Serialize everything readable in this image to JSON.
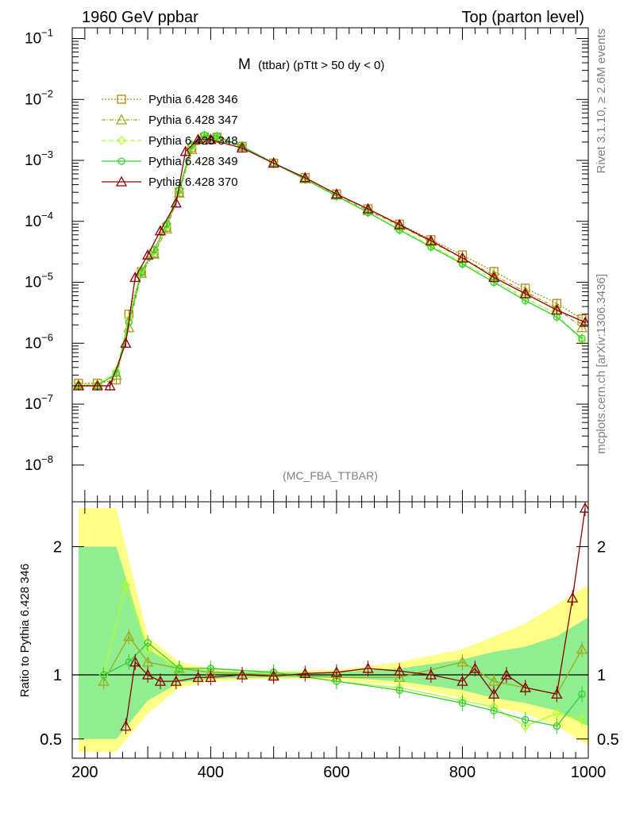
{
  "header": {
    "left": "1960 GeV ppbar",
    "right": "Top (parton level)"
  },
  "side": {
    "rivet": "Rivet 3.1.10, ≥ 2.6M events",
    "mcplots": "mcplots.cern.ch [arXiv:1306.3436]"
  },
  "chart_data": [
    {
      "type": "line",
      "panel": "main",
      "title_main": "M",
      "title_sub": "(ttbar) (pTtt > 50 dy < 0)",
      "analysis": "(MC_FBA_TTBAR)",
      "xlim": [
        180,
        1000
      ],
      "ylim": [
        2.5e-09,
        0.15
      ],
      "yscale": "log",
      "y_ticks": [
        {
          "v": 1e-08,
          "base": "10",
          "exp": "−8"
        },
        {
          "v": 1e-07,
          "base": "10",
          "exp": "−7"
        },
        {
          "v": 1e-06,
          "base": "10",
          "exp": "−6"
        },
        {
          "v": 1e-05,
          "base": "10",
          "exp": "−5"
        },
        {
          "v": 0.0001,
          "base": "10",
          "exp": "−4"
        },
        {
          "v": 0.001,
          "base": "10",
          "exp": "−3"
        },
        {
          "v": 0.01,
          "base": "10",
          "exp": "−2"
        },
        {
          "v": 0.1,
          "base": "10",
          "exp": "−1"
        }
      ],
      "legend_position": "top-left",
      "series": [
        {
          "name": "Pythia 6.428 346",
          "color": "#b8860b",
          "marker": "square",
          "dash": "2,2",
          "x": [
            190,
            220,
            250,
            270,
            290,
            310,
            330,
            350,
            370,
            390,
            410,
            450,
            500,
            550,
            600,
            650,
            700,
            750,
            800,
            850,
            900,
            950,
            990
          ],
          "y": [
            2.2e-07,
            2.2e-07,
            2.5e-07,
            3e-06,
            1.5e-05,
            3e-05,
            8e-05,
            0.0003,
            0.0016,
            0.0024,
            0.0024,
            0.0017,
            0.0009,
            0.00052,
            0.00028,
            0.00016,
            9e-05,
            5e-05,
            2.8e-05,
            1.5e-05,
            8e-06,
            4.5e-06,
            2.5e-06
          ]
        },
        {
          "name": "Pythia 6.428 347",
          "color": "#9aab1a",
          "marker": "triangle",
          "dash": "5,2,1,2",
          "x": [
            190,
            220,
            250,
            270,
            290,
            310,
            330,
            350,
            370,
            390,
            410,
            450,
            500,
            550,
            600,
            650,
            700,
            750,
            800,
            850,
            900,
            950,
            990
          ],
          "y": [
            2.1e-07,
            2.1e-07,
            3e-07,
            1.8e-06,
            1.4e-05,
            2.9e-05,
            7.5e-05,
            0.00029,
            0.0015,
            0.0023,
            0.0023,
            0.0017,
            0.00092,
            0.0005,
            0.00027,
            0.00015,
            8.5e-05,
            4.6e-05,
            2.5e-05,
            1.3e-05,
            7e-06,
            3.8e-06,
            1.8e-06
          ]
        },
        {
          "name": "Pythia 6.428 348",
          "color": "#adff2f",
          "marker": "diamond",
          "dash": "6,3",
          "x": [
            190,
            220,
            250,
            270,
            290,
            310,
            330,
            350,
            370,
            390,
            410,
            450,
            500,
            550,
            600,
            650,
            700,
            750,
            800,
            850,
            900,
            950,
            990
          ],
          "y": [
            2.1e-07,
            2.1e-07,
            3.5e-07,
            2.5e-06,
            1.6e-05,
            3.2e-05,
            8.5e-05,
            0.00032,
            0.0017,
            0.0025,
            0.0024,
            0.0017,
            0.0009,
            0.0005,
            0.00026,
            0.00014,
            7.5e-05,
            4e-05,
            2.1e-05,
            1.1e-05,
            5.5e-06,
            3e-06,
            1.1e-06
          ]
        },
        {
          "name": "Pythia 6.428 349",
          "color": "#32cd32",
          "marker": "circle",
          "dash": "",
          "x": [
            190,
            220,
            250,
            270,
            290,
            310,
            330,
            350,
            370,
            390,
            410,
            450,
            500,
            550,
            600,
            650,
            700,
            750,
            800,
            850,
            900,
            950,
            990
          ],
          "y": [
            2e-07,
            2e-07,
            3.2e-07,
            2.2e-06,
            1.5e-05,
            3.4e-05,
            9e-05,
            0.00033,
            0.0018,
            0.0026,
            0.0025,
            0.0017,
            0.0009,
            0.00049,
            0.00026,
            0.00014,
            7.2e-05,
            3.8e-05,
            2e-05,
            1e-05,
            5e-06,
            2.7e-06,
            1.2e-06
          ]
        },
        {
          "name": "Pythia 6.428 370",
          "color": "#8b0000",
          "marker": "triangle",
          "dash": "",
          "x": [
            190,
            220,
            240,
            265,
            280,
            300,
            320,
            345,
            360,
            380,
            400,
            450,
            500,
            550,
            600,
            650,
            700,
            750,
            800,
            850,
            900,
            950,
            995
          ],
          "y": [
            2e-07,
            2e-07,
            2e-07,
            1e-06,
            1.2e-05,
            2.8e-05,
            7e-05,
            0.0002,
            0.0014,
            0.0022,
            0.0022,
            0.0016,
            0.0009,
            0.00052,
            0.00028,
            0.00016,
            8.8e-05,
            4.8e-05,
            2.5e-05,
            1.2e-05,
            6.5e-06,
            3.5e-06,
            2.2e-06
          ]
        }
      ]
    },
    {
      "type": "line",
      "panel": "ratio",
      "ylabel": "Ratio to Pythia 6.428 346",
      "xlim": [
        180,
        1000
      ],
      "ylim": [
        0.35,
        2.35
      ],
      "x_ticks": [
        200,
        400,
        600,
        800,
        1000
      ],
      "y_ticks": [
        0.5,
        1,
        2
      ],
      "reference_line": 1,
      "bands": [
        {
          "color": "#ffff88",
          "x": [
            190,
            250,
            300,
            350,
            400,
            500,
            600,
            700,
            800,
            850,
            900,
            950,
            1000
          ],
          "lo": [
            0.4,
            0.4,
            0.7,
            0.9,
            0.95,
            0.97,
            0.96,
            0.92,
            0.82,
            0.75,
            0.7,
            0.6,
            0.45
          ],
          "hi": [
            2.3,
            2.3,
            1.3,
            1.1,
            1.05,
            1.03,
            1.04,
            1.1,
            1.2,
            1.3,
            1.4,
            1.55,
            1.7
          ]
        },
        {
          "color": "#90ee90",
          "x": [
            190,
            250,
            300,
            350,
            400,
            500,
            600,
            700,
            800,
            850,
            900,
            950,
            1000
          ],
          "lo": [
            0.5,
            0.5,
            0.8,
            0.94,
            0.97,
            0.98,
            0.98,
            0.95,
            0.88,
            0.82,
            0.78,
            0.72,
            0.6
          ],
          "hi": [
            2.0,
            2.0,
            1.2,
            1.06,
            1.03,
            1.02,
            1.02,
            1.05,
            1.12,
            1.18,
            1.22,
            1.3,
            1.45
          ]
        }
      ],
      "series": [
        {
          "color": "#9aab1a",
          "x": [
            230,
            270,
            300,
            350,
            400,
            500,
            600,
            700,
            800,
            850,
            900,
            950,
            990
          ],
          "y": [
            0.95,
            1.3,
            1.1,
            1.05,
            1.02,
            1.0,
            0.98,
            0.98,
            1.1,
            0.95,
            0.9,
            0.85,
            1.2
          ]
        },
        {
          "color": "#adff2f",
          "x": [
            230,
            265,
            300,
            350,
            400,
            500,
            600,
            700,
            800,
            850,
            900,
            950,
            990
          ],
          "y": [
            1.0,
            1.7,
            1.2,
            1.05,
            1.05,
            1.02,
            0.95,
            0.9,
            0.8,
            0.75,
            0.6,
            0.7,
            0.65
          ]
        },
        {
          "color": "#32cd32",
          "x": [
            230,
            270,
            300,
            350,
            400,
            500,
            600,
            700,
            800,
            850,
            900,
            950,
            990
          ],
          "y": [
            1.0,
            1.1,
            1.25,
            1.05,
            1.05,
            1.02,
            0.95,
            0.88,
            0.78,
            0.72,
            0.65,
            0.6,
            0.85
          ]
        },
        {
          "color": "#8b0000",
          "x": [
            265,
            280,
            300,
            320,
            345,
            380,
            400,
            450,
            500,
            550,
            600,
            650,
            700,
            750,
            800,
            820,
            850,
            870,
            900,
            950,
            975,
            995
          ],
          "y": [
            0.6,
            1.1,
            1.0,
            0.95,
            0.95,
            0.98,
            0.98,
            1.0,
            0.99,
            1.01,
            1.02,
            1.05,
            1.03,
            1.0,
            0.95,
            1.05,
            0.85,
            1.0,
            0.9,
            0.85,
            1.6,
            2.3
          ]
        }
      ]
    }
  ]
}
